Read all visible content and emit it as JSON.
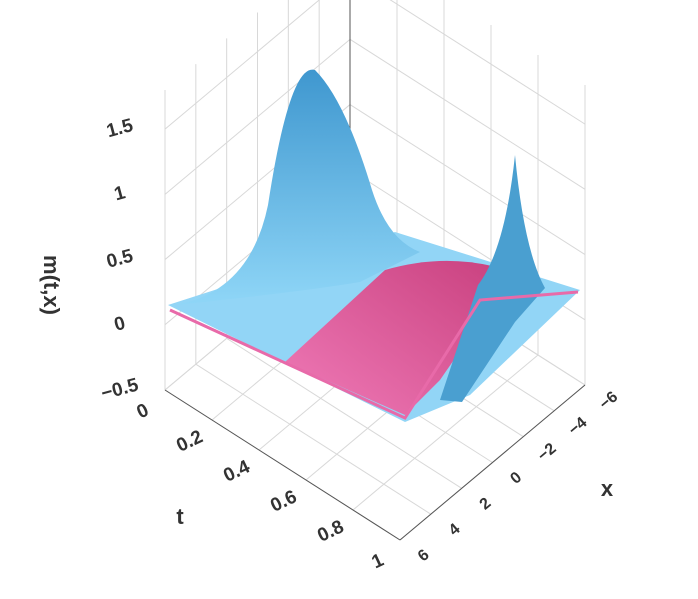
{
  "chart_data": {
    "type": "surface3d",
    "xlabel": "x",
    "ylabel": "t",
    "zlabel": "m(t,x)",
    "xlim": [
      -6,
      6
    ],
    "xticks": [
      {
        "value": -6,
        "label": "−6"
      },
      {
        "value": -4,
        "label": "−4"
      },
      {
        "value": -2,
        "label": "−2"
      },
      0,
      2,
      4,
      6
    ],
    "ylim": [
      0,
      1
    ],
    "yticks": [
      0,
      0.2,
      0.4,
      0.6,
      0.8,
      1
    ],
    "zlim": [
      -0.5,
      1.8
    ],
    "zticks": [
      {
        "value": -0.5,
        "label": "−0.5"
      },
      0,
      0.5,
      1,
      1.5
    ],
    "grid": true
  }
}
